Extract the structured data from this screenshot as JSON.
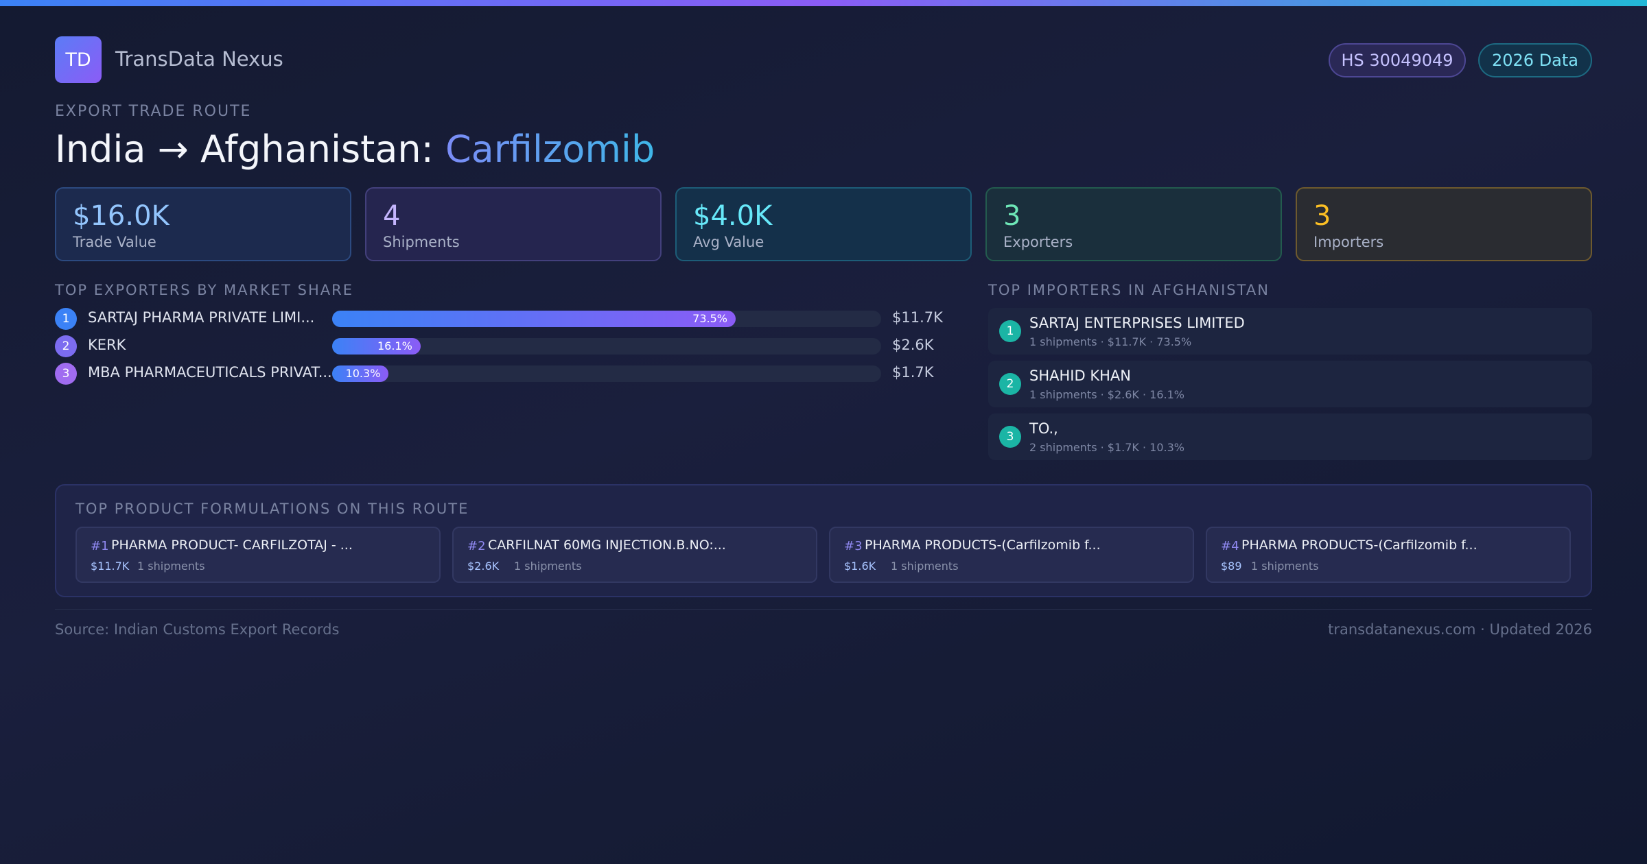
{
  "brand": {
    "logo_text": "TD",
    "name": "TransData Nexus"
  },
  "badges": {
    "hs_code": "HS 30049049",
    "year": "2026 Data"
  },
  "eyebrow": "EXPORT TRADE ROUTE",
  "title": {
    "route": "India → Afghanistan: ",
    "product": "Carfilzomib"
  },
  "stats": [
    {
      "value": "$16.0K",
      "label": "Trade Value"
    },
    {
      "value": "4",
      "label": "Shipments"
    },
    {
      "value": "$4.0K",
      "label": "Avg Value"
    },
    {
      "value": "3",
      "label": "Exporters"
    },
    {
      "value": "3",
      "label": "Importers"
    }
  ],
  "exporters": {
    "title": "TOP EXPORTERS BY MARKET SHARE",
    "items": [
      {
        "rank": "1",
        "name": "SARTAJ PHARMA PRIVATE LIMI...",
        "share": 73.5,
        "share_label": "73.5%",
        "value": "$11.7K",
        "color": "#3b82f6"
      },
      {
        "rank": "2",
        "name": "KERK",
        "share": 16.1,
        "share_label": "16.1%",
        "value": "$2.6K",
        "color": "#7c6cf0"
      },
      {
        "rank": "3",
        "name": "MBA PHARMACEUTICALS PRIVAT...",
        "share": 10.3,
        "share_label": "10.3%",
        "value": "$1.7K",
        "color": "#a06cf0"
      }
    ]
  },
  "importers": {
    "title": "TOP IMPORTERS IN AFGHANISTAN",
    "items": [
      {
        "rank": "1",
        "name": "SARTAJ ENTERPRISES LIMITED",
        "meta": "1 shipments · $11.7K · 73.5%"
      },
      {
        "rank": "2",
        "name": "SHAHID KHAN",
        "meta": "1 shipments · $2.6K · 16.1%"
      },
      {
        "rank": "3",
        "name": "TO.,",
        "meta": "2 shipments · $1.7K · 10.3%"
      }
    ]
  },
  "products": {
    "title": "TOP PRODUCT FORMULATIONS ON THIS ROUTE",
    "items": [
      {
        "num": "#1",
        "name": "PHARMA PRODUCT- CARFILZOTAJ - ...",
        "value": "$11.7K",
        "shipments": "1 shipments"
      },
      {
        "num": "#2",
        "name": "CARFILNAT 60MG INJECTION.B.NO:...",
        "value": "$2.6K",
        "shipments": "1 shipments"
      },
      {
        "num": "#3",
        "name": "PHARMA PRODUCTS-(Carfilzomib f...",
        "value": "$1.6K",
        "shipments": "1 shipments"
      },
      {
        "num": "#4",
        "name": "PHARMA PRODUCTS-(Carfilzomib f...",
        "value": "$89",
        "shipments": "1 shipments"
      }
    ]
  },
  "footer": {
    "source": "Source: Indian Customs Export Records",
    "site": "transdatanexus.com · Updated 2026"
  }
}
